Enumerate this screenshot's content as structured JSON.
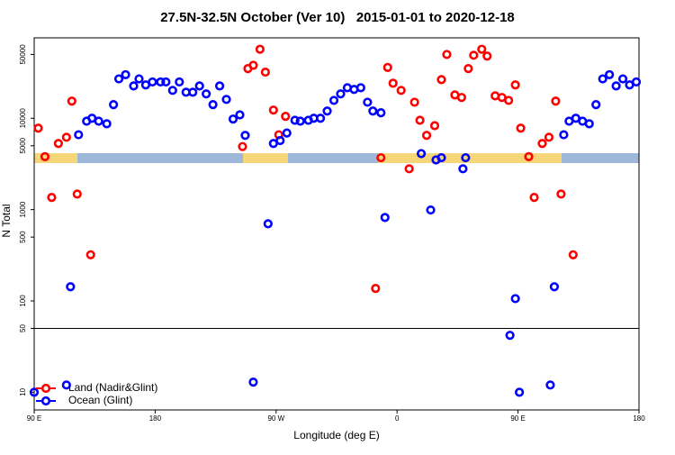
{
  "chart_data": {
    "type": "scatter",
    "title": "27.5N-32.5N October (Ver 10)   2015-01-01 to 2020-12-18",
    "x_label": "Longitude (deg E)",
    "y_label": "N Total",
    "xlim": [
      90,
      540
    ],
    "xticks": [
      {
        "value": 90,
        "label": "90 E"
      },
      180,
      {
        "value": 270,
        "label": "90 W"
      },
      {
        "value": 360,
        "label": "0"
      },
      {
        "value": 450,
        "label": "90 E"
      },
      {
        "value": 540,
        "label": "180"
      }
    ],
    "ylim": [
      6.4,
      76000
    ],
    "log_y": true,
    "yticks": [
      10,
      50,
      100,
      500,
      1000,
      5000,
      10000,
      50000
    ],
    "separator_y": 50,
    "legend": "bottom left",
    "series": [
      {
        "name": "Land (Nadir&Glint)",
        "color": "#ff0000",
        "x": [
          93,
          98,
          103,
          108,
          114,
          118,
          122,
          132,
          245,
          249,
          253,
          258,
          262,
          268,
          272,
          277,
          344,
          348,
          353,
          357,
          363,
          369,
          373,
          377,
          382,
          388,
          393,
          397,
          403,
          408,
          413,
          417,
          423,
          427,
          433,
          438,
          443,
          448,
          452,
          458,
          462,
          468,
          473,
          478,
          482,
          491
        ],
        "values": [
          7800,
          3800,
          1360,
          5300,
          6200,
          15400,
          1480,
          320,
          4900,
          35000,
          38000,
          57000,
          32000,
          12300,
          6600,
          10500,
          137,
          3700,
          36000,
          24200,
          20200,
          2800,
          15000,
          9500,
          6500,
          8300,
          26500,
          50000,
          18000,
          16900,
          35000,
          49000,
          57000,
          48000,
          17600,
          16900,
          15700,
          23200,
          7800,
          3800,
          1360,
          5300,
          6200,
          15400,
          1480,
          320
        ]
      },
      {
        "name": "Ocean (Glint)",
        "color": "#0000ff",
        "x": [
          90,
          114,
          117,
          123,
          129,
          133,
          138,
          144,
          149,
          153,
          158,
          164,
          168,
          173,
          178,
          184,
          188,
          193,
          198,
          203,
          208,
          213,
          218,
          223,
          228,
          233,
          238,
          243,
          247,
          253,
          264,
          268,
          273,
          278,
          284,
          288,
          294,
          298,
          303,
          308,
          313,
          318,
          323,
          328,
          333,
          338,
          342,
          348,
          351,
          378,
          385,
          389,
          393,
          409,
          411,
          444,
          448,
          451,
          474,
          477,
          484,
          488,
          493,
          498,
          503,
          508,
          513,
          518,
          523,
          528,
          533,
          538
        ],
        "values": [
          10,
          12,
          143,
          6600,
          9300,
          10000,
          9300,
          8700,
          14100,
          27000,
          30000,
          22600,
          27000,
          23200,
          25000,
          25000,
          25000,
          20200,
          25000,
          19300,
          19300,
          22600,
          18500,
          14100,
          22600,
          16100,
          9800,
          10900,
          6500,
          12.9,
          700,
          5300,
          5700,
          6900,
          9500,
          9300,
          9500,
          10000,
          10000,
          12000,
          15700,
          18500,
          21600,
          20700,
          21600,
          15000,
          12000,
          11500,
          820,
          4100,
          990,
          3500,
          3700,
          2800,
          3700,
          42,
          106,
          10,
          12,
          143,
          6600,
          9300,
          10000,
          9300,
          8700,
          14100,
          27000,
          30000,
          22600,
          27000,
          23200,
          25000
        ]
      }
    ]
  }
}
